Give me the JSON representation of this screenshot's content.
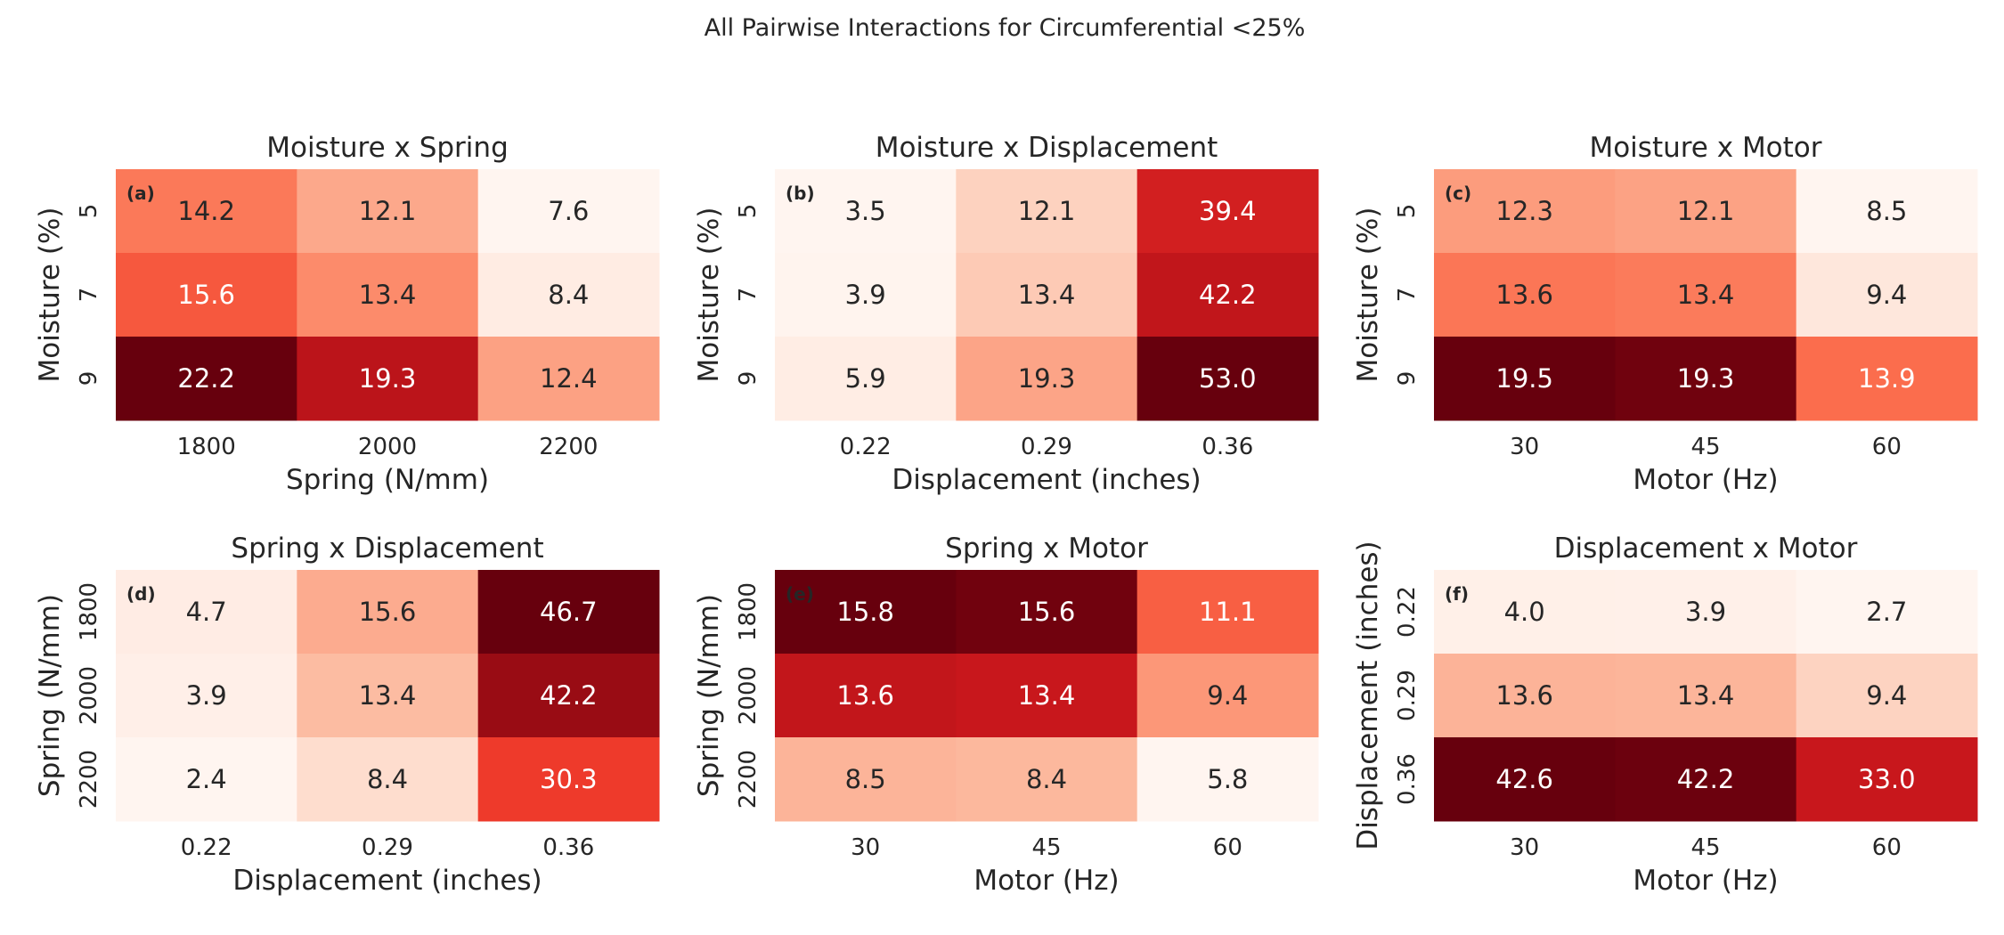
{
  "figure": {
    "title": "All Pairwise Interactions for Circumferential <25%"
  },
  "colors": {
    "background": "#ffffff",
    "text_dark": "#262626",
    "text_light": "#ffffff",
    "colormap": [
      "#fff5f0",
      "#fee0d2",
      "#fcbba1",
      "#fc9272",
      "#fb6a4a",
      "#ef3b2c",
      "#cb181d",
      "#a50f15",
      "#67000d"
    ]
  },
  "chart_data": [
    {
      "type": "heatmap",
      "panel_label": "(a)",
      "title": "Moisture x Spring",
      "xlabel": "Spring (N/mm)",
      "ylabel": "Moisture (%)",
      "x_categories": [
        "1800",
        "2000",
        "2200"
      ],
      "y_categories": [
        "5",
        "7",
        "9"
      ],
      "values": [
        [
          14.2,
          12.1,
          7.6
        ],
        [
          15.6,
          13.4,
          8.4
        ],
        [
          22.2,
          19.3,
          12.4
        ]
      ]
    },
    {
      "type": "heatmap",
      "panel_label": "(b)",
      "title": "Moisture x Displacement",
      "xlabel": "Displacement (inches)",
      "ylabel": "Moisture (%)",
      "x_categories": [
        "0.22",
        "0.29",
        "0.36"
      ],
      "y_categories": [
        "5",
        "7",
        "9"
      ],
      "values": [
        [
          3.5,
          12.1,
          39.4
        ],
        [
          3.9,
          13.4,
          42.2
        ],
        [
          5.9,
          19.3,
          53.0
        ]
      ]
    },
    {
      "type": "heatmap",
      "panel_label": "(c)",
      "title": "Moisture x Motor",
      "xlabel": "Motor (Hz)",
      "ylabel": "Moisture (%)",
      "x_categories": [
        "30",
        "45",
        "60"
      ],
      "y_categories": [
        "5",
        "7",
        "9"
      ],
      "values": [
        [
          12.3,
          12.1,
          8.5
        ],
        [
          13.6,
          13.4,
          9.4
        ],
        [
          19.5,
          19.3,
          13.9
        ]
      ]
    },
    {
      "type": "heatmap",
      "panel_label": "(d)",
      "title": "Spring x Displacement",
      "xlabel": "Displacement (inches)",
      "ylabel": "Spring (N/mm)",
      "x_categories": [
        "0.22",
        "0.29",
        "0.36"
      ],
      "y_categories": [
        "1800",
        "2000",
        "2200"
      ],
      "values": [
        [
          4.7,
          15.6,
          46.7
        ],
        [
          3.9,
          13.4,
          42.2
        ],
        [
          2.4,
          8.4,
          30.3
        ]
      ]
    },
    {
      "type": "heatmap",
      "panel_label": "(e)",
      "title": "Spring x Motor",
      "xlabel": "Motor (Hz)",
      "ylabel": "Spring (N/mm)",
      "x_categories": [
        "30",
        "45",
        "60"
      ],
      "y_categories": [
        "1800",
        "2000",
        "2200"
      ],
      "values": [
        [
          15.8,
          15.6,
          11.1
        ],
        [
          13.6,
          13.4,
          9.4
        ],
        [
          8.5,
          8.4,
          5.8
        ]
      ]
    },
    {
      "type": "heatmap",
      "panel_label": "(f)",
      "title": "Displacement x Motor",
      "xlabel": "Motor (Hz)",
      "ylabel": "Displacement (inches)",
      "x_categories": [
        "30",
        "45",
        "60"
      ],
      "y_categories": [
        "0.22",
        "0.29",
        "0.36"
      ],
      "values": [
        [
          4.0,
          3.9,
          2.7
        ],
        [
          13.6,
          13.4,
          9.4
        ],
        [
          42.6,
          42.2,
          33.0
        ]
      ]
    }
  ]
}
